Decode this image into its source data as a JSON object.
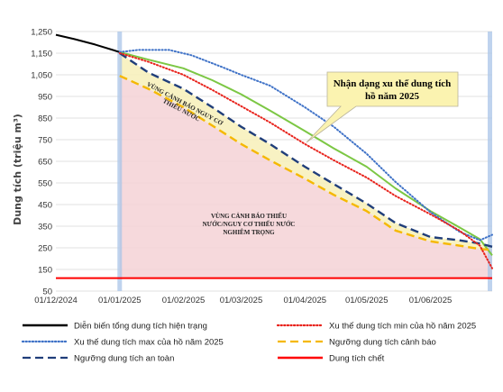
{
  "chart_data": {
    "type": "line",
    "ylabel": "Dung tích (triệu m³)",
    "ylim": [
      50,
      1250
    ],
    "y_ticks": [
      "1,250",
      "1,150",
      "1,050",
      "950",
      "850",
      "750",
      "650",
      "550",
      "450",
      "350",
      "250",
      "150",
      "50"
    ],
    "x_ticks": [
      "01/12/2024",
      "01/01/2025",
      "01/02/2025",
      "01/03/2025",
      "01/04/2025",
      "01/05/2025",
      "01/06/2025"
    ],
    "x_range": [
      "2024-12-01",
      "2025-07-01"
    ],
    "forecast_start": "2025-01-01",
    "annotations": {
      "callout": [
        "Nhận dạng xu thế dung tích",
        "hồ năm 2025"
      ],
      "warning_zone": [
        "VÙNG CẢNH BÁO NGUY CƠ",
        "THIẾU NƯỚC"
      ],
      "severe_zone": [
        "VÙNG CẢNH BÁO THIẾU",
        "NƯỚC/NGUY CƠ THIẾU NƯỚC",
        "NGHIÊM TRỌNG"
      ]
    },
    "series": [
      {
        "name": "Diễn biến tổng dung tích hiện trạng",
        "color": "#000000",
        "style": "solid",
        "x": [
          "2024-12-01",
          "2024-12-10",
          "2024-12-20",
          "2025-01-01"
        ],
        "y": [
          1235,
          1215,
          1190,
          1155
        ]
      },
      {
        "name": "Xu thế dung tích min của hồ năm 2025",
        "color": "#e8221b",
        "style": "dotted",
        "x": [
          "2025-01-01",
          "2025-01-15",
          "2025-02-01",
          "2025-02-15",
          "2025-03-01",
          "2025-03-15",
          "2025-04-01",
          "2025-04-15",
          "2025-05-01",
          "2025-05-15",
          "2025-06-01",
          "2025-06-15",
          "2025-06-25",
          "2025-07-01"
        ],
        "y": [
          1150,
          1110,
          1050,
          980,
          905,
          830,
          730,
          655,
          575,
          490,
          405,
          330,
          260,
          155
        ]
      },
      {
        "name": "Xu thế dung tích max của hồ năm 2025",
        "color": "#3f72c7",
        "style": "dotted",
        "x": [
          "2025-01-01",
          "2025-01-10",
          "2025-01-25",
          "2025-02-05",
          "2025-02-20",
          "2025-03-01",
          "2025-03-15",
          "2025-04-01",
          "2025-04-15",
          "2025-05-01",
          "2025-05-15",
          "2025-06-01",
          "2025-06-15",
          "2025-06-25",
          "2025-07-01"
        ],
        "y": [
          1155,
          1165,
          1165,
          1140,
          1085,
          1050,
          1000,
          900,
          810,
          685,
          555,
          415,
          325,
          285,
          310
        ]
      },
      {
        "name": "Ngưỡng dung tích cảnh báo",
        "color": "#f5b800",
        "style": "dashed",
        "x": [
          "2025-01-01",
          "2025-01-15",
          "2025-02-01",
          "2025-02-15",
          "2025-03-01",
          "2025-03-15",
          "2025-04-01",
          "2025-04-15",
          "2025-05-01",
          "2025-05-15",
          "2025-06-01",
          "2025-06-15",
          "2025-06-25",
          "2025-07-01"
        ],
        "y": [
          1045,
          985,
          900,
          815,
          730,
          655,
          570,
          495,
          420,
          330,
          280,
          260,
          245,
          240
        ]
      },
      {
        "name": "Ngưỡng dung tích an toàn",
        "color": "#203e7a",
        "style": "dashed",
        "x": [
          "2025-01-01",
          "2025-01-15",
          "2025-02-01",
          "2025-02-15",
          "2025-03-01",
          "2025-03-15",
          "2025-04-01",
          "2025-04-15",
          "2025-05-01",
          "2025-05-15",
          "2025-06-01",
          "2025-06-15",
          "2025-06-25",
          "2025-07-01"
        ],
        "y": [
          1150,
          1060,
          985,
          900,
          810,
          730,
          625,
          545,
          455,
          365,
          300,
          285,
          270,
          255
        ]
      },
      {
        "name": "Dung tích chết",
        "color": "#ff0000",
        "style": "solid",
        "x": [
          "2024-12-01",
          "2025-07-01"
        ],
        "y": [
          110,
          110
        ]
      },
      {
        "name": "",
        "color": "#7cc744",
        "style": "solid",
        "x": [
          "2025-01-01",
          "2025-01-15",
          "2025-02-01",
          "2025-02-15",
          "2025-03-01",
          "2025-03-15",
          "2025-04-01",
          "2025-04-15",
          "2025-05-01",
          "2025-05-15",
          "2025-06-01",
          "2025-06-15",
          "2025-06-25",
          "2025-07-01"
        ],
        "y": [
          1155,
          1120,
          1080,
          1025,
          960,
          885,
          790,
          710,
          625,
          525,
          420,
          345,
          290,
          215
        ]
      }
    ],
    "legend": {
      "placement": "bottom",
      "entries": [
        {
          "label": "Diễn biến tổng dung tích hiện trạng",
          "color": "#000000",
          "style": "solid"
        },
        {
          "label": "Xu thế dung tích min của hồ năm 2025",
          "color": "#e8221b",
          "style": "dotted"
        },
        {
          "label": "Xu thế dung tích max của hồ năm 2025",
          "color": "#3f72c7",
          "style": "dotted"
        },
        {
          "label": "Ngưỡng dung tích cảnh báo",
          "color": "#f5b800",
          "style": "dashed"
        },
        {
          "label": "Ngưỡng dung tích an toàn",
          "color": "#203e7a",
          "style": "dashed"
        },
        {
          "label": "Dung tích chết",
          "color": "#ff0000",
          "style": "solid"
        }
      ]
    }
  }
}
